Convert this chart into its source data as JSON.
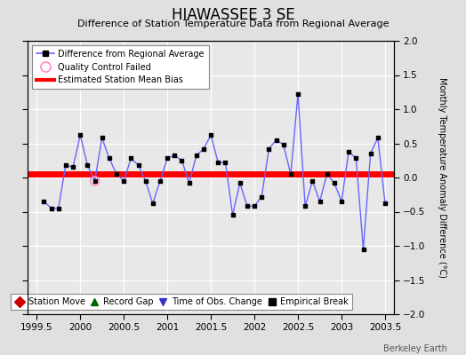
{
  "title": "HIAWASSEE 3 SE",
  "subtitle": "Difference of Station Temperature Data from Regional Average",
  "ylabel": "Monthly Temperature Anomaly Difference (°C)",
  "xlim": [
    1999.4,
    2003.6
  ],
  "ylim": [
    -2.0,
    2.0
  ],
  "xticks": [
    1999.5,
    2000.0,
    2000.5,
    2001.0,
    2001.5,
    2002.0,
    2002.5,
    2003.0,
    2003.5
  ],
  "xtick_labels": [
    "1999.5",
    "2000",
    "2000.5",
    "2001",
    "2001.5",
    "2002",
    "2002.5",
    "2003",
    "2003.5"
  ],
  "yticks": [
    -2.0,
    -1.5,
    -1.0,
    -0.5,
    0.0,
    0.5,
    1.0,
    1.5,
    2.0
  ],
  "background_color": "#e0e0e0",
  "plot_bg_color": "#e8e8e8",
  "grid_color": "#ffffff",
  "line_color": "#6666ff",
  "marker_color": "#000000",
  "bias_line_color": "#ff0000",
  "bias_value": 0.05,
  "watermark": "Berkeley Earth",
  "x_data": [
    1999.583,
    1999.667,
    1999.75,
    1999.833,
    1999.917,
    2000.0,
    2000.083,
    2000.167,
    2000.25,
    2000.333,
    2000.417,
    2000.5,
    2000.583,
    2000.667,
    2000.75,
    2000.833,
    2000.917,
    2001.0,
    2001.083,
    2001.167,
    2001.25,
    2001.333,
    2001.417,
    2001.5,
    2001.583,
    2001.667,
    2001.75,
    2001.833,
    2001.917,
    2002.0,
    2002.083,
    2002.167,
    2002.25,
    2002.333,
    2002.417,
    2002.5,
    2002.583,
    2002.667,
    2002.75,
    2002.833,
    2002.917,
    2003.0,
    2003.083,
    2003.167,
    2003.25,
    2003.333,
    2003.417,
    2003.5
  ],
  "y_data": [
    -0.35,
    -0.45,
    -0.45,
    0.18,
    0.15,
    0.62,
    0.18,
    -0.05,
    0.58,
    0.28,
    0.05,
    -0.05,
    0.28,
    0.18,
    -0.05,
    -0.38,
    -0.05,
    0.28,
    0.32,
    0.25,
    -0.08,
    0.32,
    0.42,
    0.62,
    0.22,
    0.22,
    -0.55,
    -0.08,
    -0.42,
    -0.42,
    -0.28,
    0.42,
    0.55,
    0.48,
    0.05,
    1.22,
    -0.42,
    -0.05,
    -0.35,
    0.05,
    -0.08,
    -0.35,
    0.38,
    0.28,
    -1.05,
    0.35,
    0.58,
    -0.38
  ],
  "qc_failed_x": [
    2000.167
  ],
  "qc_failed_y": [
    -0.05
  ]
}
